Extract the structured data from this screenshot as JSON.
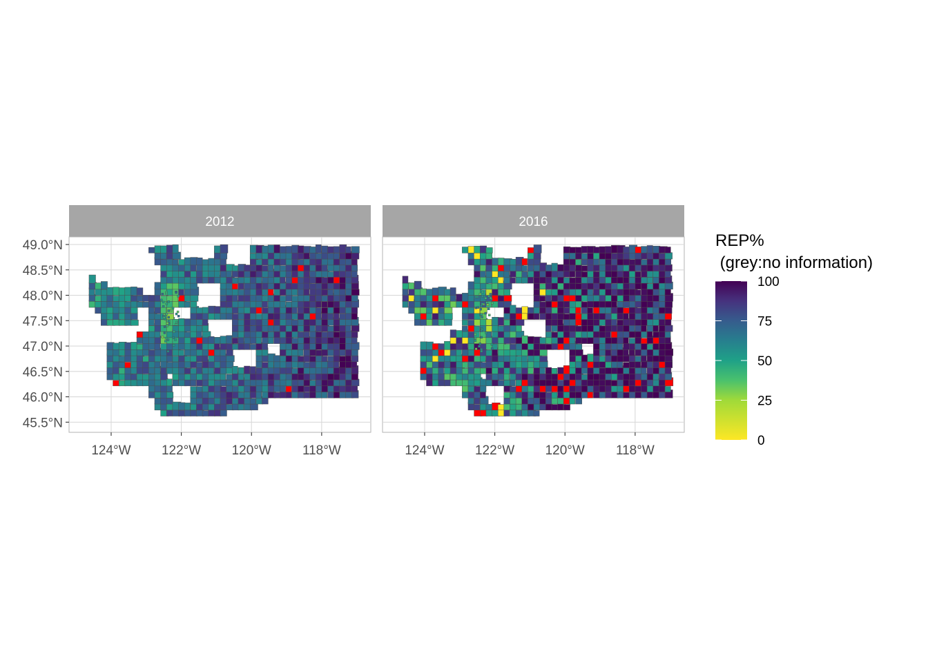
{
  "chart_data": {
    "type": "choropleth-map",
    "region": "Washington State precincts",
    "fill_variable": "REP%",
    "facets": [
      {
        "label": "2012"
      },
      {
        "label": "2016"
      }
    ],
    "x_ticks": [
      {
        "value": -124,
        "label": "124°W"
      },
      {
        "value": -122,
        "label": "122°W"
      },
      {
        "value": -120,
        "label": "120°W"
      },
      {
        "value": -118,
        "label": "118°W"
      }
    ],
    "y_ticks": [
      {
        "value": 49.0,
        "label": "49.0°N"
      },
      {
        "value": 48.5,
        "label": "48.5°N"
      },
      {
        "value": 48.0,
        "label": "48.0°N"
      },
      {
        "value": 47.5,
        "label": "47.5°N"
      },
      {
        "value": 47.0,
        "label": "47.0°N"
      },
      {
        "value": 46.5,
        "label": "46.5°N"
      },
      {
        "value": 46.0,
        "label": "46.0°N"
      },
      {
        "value": 45.5,
        "label": "45.5°N"
      }
    ],
    "xlim": [
      -125.2,
      -116.6
    ],
    "ylim": [
      45.3,
      49.15
    ],
    "legend": {
      "title_line1": "REP%",
      "title_line2": " (grey:no information)",
      "placement": "right",
      "scale": "viridis-reversed",
      "range": [
        0,
        100
      ],
      "ticks": [
        {
          "value": 100,
          "label": "100"
        },
        {
          "value": 75,
          "label": "75"
        },
        {
          "value": 50,
          "label": "50"
        },
        {
          "value": 25,
          "label": "25"
        },
        {
          "value": 0,
          "label": "0"
        }
      ]
    },
    "colors": {
      "viridis_high": "#440154",
      "viridis_mid": "#21908c",
      "viridis_low": "#fde725",
      "special_red": "#ff0000",
      "precinct_border": "#4d4d4d",
      "strip_bg": "#a6a6a6",
      "grid": "#d9d9d9",
      "panel_border": "#b3b3b3"
    }
  }
}
